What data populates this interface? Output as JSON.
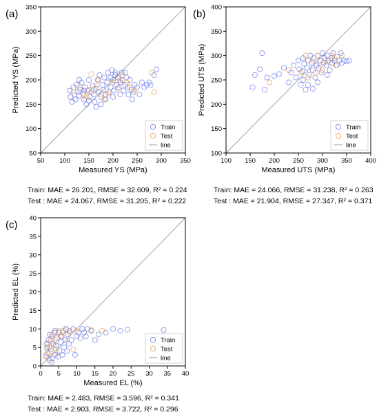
{
  "panels": [
    {
      "id": "a",
      "panel_label": "(a)",
      "metrics": [
        "Train: MAE = 26.201, RMSE = 32.609, R² = 0.224",
        "Test : MAE = 24.067, RMSE = 31.205, R² = 0.222"
      ]
    },
    {
      "id": "b",
      "panel_label": "(b)",
      "metrics": [
        "Train: MAE = 24.066, RMSE = 31.238, R² = 0.263",
        "Test : MAE = 21.904, RMSE = 27.347, R² = 0.371"
      ]
    },
    {
      "id": "c",
      "panel_label": "(c)",
      "metrics": [
        "Train: MAE = 2.483, RMSE = 3.596, R² = 0.341",
        "Test : MAE = 2.903, RMSE = 3.722, R² = 0.296"
      ]
    }
  ],
  "colors": {
    "train": "#6f7fe8",
    "test": "#e8a05a",
    "line": "#9a9a9a",
    "axis": "#000000",
    "legend_box": "#c8c8c8"
  },
  "chart_data": [
    {
      "type": "scatter",
      "xlabel": "Measured YS (MPa)",
      "ylabel": "Predicted YS (MPa)",
      "xlim": [
        50,
        350
      ],
      "ylim": [
        50,
        350
      ],
      "xticks": [
        50,
        100,
        150,
        200,
        250,
        300,
        350
      ],
      "yticks": [
        50,
        100,
        150,
        200,
        250,
        300,
        350
      ],
      "legend": [
        "Train",
        "Test",
        "line"
      ],
      "legend_position": "bottom-right",
      "series": [
        {
          "name": "Train",
          "points": [
            [
              110,
              178
            ],
            [
              112,
              165
            ],
            [
              115,
              155
            ],
            [
              118,
              185
            ],
            [
              120,
              170
            ],
            [
              122,
              160
            ],
            [
              125,
              190
            ],
            [
              128,
              175
            ],
            [
              130,
              168
            ],
            [
              132,
              180
            ],
            [
              135,
              195
            ],
            [
              138,
              172
            ],
            [
              140,
              160
            ],
            [
              142,
              185
            ],
            [
              145,
              150
            ],
            [
              148,
              178
            ],
            [
              150,
              200
            ],
            [
              152,
              165
            ],
            [
              155,
              175
            ],
            [
              158,
              188
            ],
            [
              160,
              170
            ],
            [
              162,
              155
            ],
            [
              165,
              182
            ],
            [
              168,
              200
            ],
            [
              170,
              176
            ],
            [
              172,
              210
            ],
            [
              175,
              165
            ],
            [
              178,
              190
            ],
            [
              180,
              180
            ],
            [
              182,
              205
            ],
            [
              185,
              170
            ],
            [
              188,
              195
            ],
            [
              190,
              215
            ],
            [
              192,
              175
            ],
            [
              195,
              185
            ],
            [
              198,
              220
            ],
            [
              200,
              200
            ],
            [
              202,
              178
            ],
            [
              205,
              210
            ],
            [
              208,
              190
            ],
            [
              210,
              205
            ],
            [
              212,
              185
            ],
            [
              215,
              195
            ],
            [
              218,
              215
            ],
            [
              220,
              200
            ],
            [
              222,
              178
            ],
            [
              225,
              190
            ],
            [
              228,
              205
            ],
            [
              230,
              185
            ],
            [
              232,
              170
            ],
            [
              235,
              200
            ],
            [
              238,
              180
            ],
            [
              240,
              160
            ],
            [
              242,
              175
            ],
            [
              245,
              190
            ],
            [
              250,
              185
            ],
            [
              255,
              170
            ],
            [
              260,
              195
            ],
            [
              265,
              185
            ],
            [
              270,
              190
            ],
            [
              275,
              195
            ],
            [
              278,
              190
            ],
            [
              285,
              210
            ],
            [
              290,
              222
            ],
            [
              195,
              205
            ],
            [
              205,
              215
            ],
            [
              185,
              160
            ],
            [
              175,
              150
            ],
            [
              165,
              145
            ],
            [
              150,
              158
            ],
            [
              140,
              178
            ],
            [
              130,
              200
            ],
            [
              225,
              215
            ],
            [
              215,
              170
            ],
            [
              200,
              165
            ]
          ]
        },
        {
          "name": "Test",
          "points": [
            [
              118,
              175
            ],
            [
              130,
              185
            ],
            [
              140,
              168
            ],
            [
              150,
              180
            ],
            [
              155,
              212
            ],
            [
              160,
              180
            ],
            [
              170,
              200
            ],
            [
              175,
              170
            ],
            [
              182,
              160
            ],
            [
              190,
              172
            ],
            [
              198,
              195
            ],
            [
              205,
              198
            ],
            [
              210,
              182
            ],
            [
              215,
              200
            ],
            [
              220,
              210
            ],
            [
              228,
              195
            ],
            [
              235,
              185
            ],
            [
              245,
              178
            ],
            [
              280,
              215
            ],
            [
              285,
              175
            ],
            [
              165,
              188
            ],
            [
              145,
              165
            ]
          ]
        }
      ]
    },
    {
      "type": "scatter",
      "xlabel": "Measured UTS (MPa)",
      "ylabel": "Predicted UTS (MPa)",
      "xlim": [
        100,
        400
      ],
      "ylim": [
        100,
        400
      ],
      "xticks": [
        100,
        150,
        200,
        250,
        300,
        350,
        400
      ],
      "yticks": [
        100,
        150,
        200,
        250,
        300,
        350,
        400
      ],
      "legend": [
        "Train",
        "Test",
        "line"
      ],
      "legend_position": "bottom-right",
      "series": [
        {
          "name": "Train",
          "points": [
            [
              155,
              235
            ],
            [
              160,
              260
            ],
            [
              170,
              272
            ],
            [
              175,
              305
            ],
            [
              180,
              230
            ],
            [
              185,
              255
            ],
            [
              200,
              258
            ],
            [
              210,
              262
            ],
            [
              220,
              275
            ],
            [
              230,
              245
            ],
            [
              235,
              265
            ],
            [
              240,
              280
            ],
            [
              245,
              255
            ],
            [
              250,
              290
            ],
            [
              252,
              272
            ],
            [
              255,
              240
            ],
            [
              258,
              268
            ],
            [
              260,
              295
            ],
            [
              262,
              283
            ],
            [
              265,
              230
            ],
            [
              268,
              275
            ],
            [
              270,
              290
            ],
            [
              272,
              260
            ],
            [
              275,
              300
            ],
            [
              278,
              285
            ],
            [
              280,
              270
            ],
            [
              282,
              295
            ],
            [
              285,
              255
            ],
            [
              288,
              280
            ],
            [
              290,
              300
            ],
            [
              292,
              275
            ],
            [
              295,
              290
            ],
            [
              298,
              265
            ],
            [
              300,
              305
            ],
            [
              302,
              285
            ],
            [
              305,
              295
            ],
            [
              308,
              280
            ],
            [
              310,
              300
            ],
            [
              312,
              290
            ],
            [
              315,
              270
            ],
            [
              318,
              295
            ],
            [
              320,
              285
            ],
            [
              322,
              305
            ],
            [
              325,
              290
            ],
            [
              328,
              280
            ],
            [
              330,
              298
            ],
            [
              335,
              290
            ],
            [
              338,
              305
            ],
            [
              340,
              285
            ],
            [
              345,
              290
            ],
            [
              350,
              288
            ],
            [
              355,
              290
            ],
            [
              270,
              240
            ],
            [
              290,
              245
            ],
            [
              310,
              260
            ],
            [
              260,
              250
            ],
            [
              280,
              232
            ]
          ]
        },
        {
          "name": "Test",
          "points": [
            [
              190,
              245
            ],
            [
              230,
              270
            ],
            [
              255,
              265
            ],
            [
              265,
              300
            ],
            [
              270,
              255
            ],
            [
              280,
              290
            ],
            [
              285,
              265
            ],
            [
              290,
              300
            ],
            [
              295,
              280
            ],
            [
              300,
              270
            ],
            [
              305,
              290
            ],
            [
              315,
              285
            ],
            [
              320,
              300
            ],
            [
              325,
              295
            ],
            [
              330,
              280
            ],
            [
              340,
              300
            ]
          ]
        }
      ]
    },
    {
      "type": "scatter",
      "xlabel": "Measured EL (%)",
      "ylabel": "Predicted EL (%)",
      "xlim": [
        0,
        40
      ],
      "ylim": [
        0,
        40
      ],
      "xticks": [
        0,
        5,
        10,
        15,
        20,
        25,
        30,
        35,
        40
      ],
      "yticks": [
        0,
        5,
        10,
        15,
        20,
        25,
        30,
        35,
        40
      ],
      "legend": [
        "Train",
        "Test",
        "line"
      ],
      "legend_position": "bottom-right",
      "series": [
        {
          "name": "Train",
          "points": [
            [
              1.5,
              2.5
            ],
            [
              1.8,
              5
            ],
            [
              2,
              3.5
            ],
            [
              2.2,
              7
            ],
            [
              2.5,
              1.5
            ],
            [
              2.8,
              4.5
            ],
            [
              3,
              8
            ],
            [
              3.2,
              2
            ],
            [
              3.5,
              6
            ],
            [
              3.8,
              9
            ],
            [
              4,
              3
            ],
            [
              4.2,
              5.5
            ],
            [
              4.5,
              7.5
            ],
            [
              4.8,
              2.5
            ],
            [
              5,
              9
            ],
            [
              5.2,
              4
            ],
            [
              5.5,
              6.5
            ],
            [
              5.8,
              8
            ],
            [
              6,
              3
            ],
            [
              6.3,
              9.5
            ],
            [
              6.5,
              5
            ],
            [
              6.8,
              7
            ],
            [
              7,
              10
            ],
            [
              7.3,
              4
            ],
            [
              7.5,
              8.5
            ],
            [
              7.8,
              6
            ],
            [
              8,
              9.5
            ],
            [
              8.5,
              7
            ],
            [
              9,
              10
            ],
            [
              9.5,
              3
            ],
            [
              10,
              8
            ],
            [
              10.5,
              9
            ],
            [
              11,
              7.5
            ],
            [
              11.5,
              10
            ],
            [
              12,
              9
            ],
            [
              12.5,
              8
            ],
            [
              13,
              10
            ],
            [
              14,
              9.5
            ],
            [
              15,
              7
            ],
            [
              16,
              8.5
            ],
            [
              18,
              9
            ],
            [
              20,
              10
            ],
            [
              22,
              9.5
            ],
            [
              24,
              9.8
            ],
            [
              34,
              9.7
            ],
            [
              2.5,
              8.5
            ],
            [
              3,
              1
            ],
            [
              4,
              9.5
            ],
            [
              1.6,
              6
            ]
          ]
        },
        {
          "name": "Test",
          "points": [
            [
              1.5,
              3
            ],
            [
              1.8,
              4.5
            ],
            [
              2,
              6
            ],
            [
              2.3,
              2
            ],
            [
              2.5,
              5
            ],
            [
              2.8,
              7
            ],
            [
              3,
              4
            ],
            [
              3.3,
              8.5
            ],
            [
              3.6,
              5.5
            ],
            [
              4,
              7
            ],
            [
              4.5,
              3.5
            ],
            [
              5,
              9.5
            ],
            [
              5.5,
              8
            ],
            [
              6,
              9
            ],
            [
              7,
              9.8
            ],
            [
              8,
              9
            ],
            [
              9,
              4.5
            ],
            [
              10,
              9.5
            ],
            [
              14,
              9.7
            ],
            [
              17,
              9.5
            ]
          ]
        }
      ]
    }
  ]
}
